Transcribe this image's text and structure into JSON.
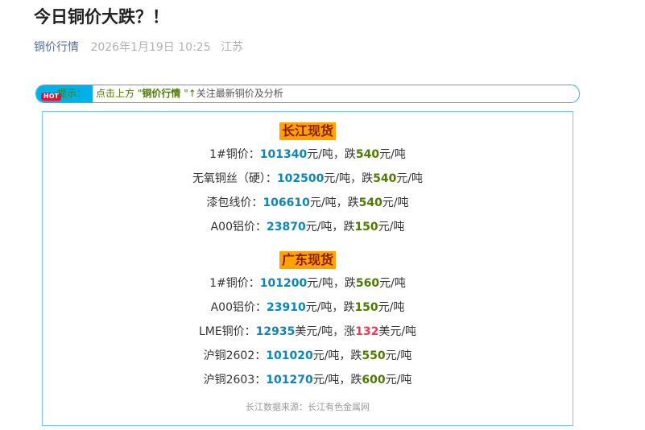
{
  "article": {
    "title": "今日铜价大跌？！",
    "account": "铜价行情",
    "date": "2026年1月19日 10:25",
    "location": "江苏"
  },
  "notice": {
    "badge": "HOT",
    "label": "提示：",
    "prefix": "点击上方 \"",
    "account": "铜价行情",
    "suffix": " \"↑",
    "rest": "关注最新铜价及分析"
  },
  "sections": [
    {
      "title": "长江现货",
      "rows": [
        {
          "label": "1#铜价：",
          "price": "101340",
          "unit": "元/吨，",
          "dir": "跌",
          "delta": "540",
          "delta_unit": "元/吨",
          "trend": "down"
        },
        {
          "label": "无氧铜丝（硬）：",
          "price": "102500",
          "unit": "元/吨，",
          "dir": "跌",
          "delta": "540",
          "delta_unit": "元/吨",
          "trend": "down"
        },
        {
          "label": "漆包线价：",
          "price": "106610",
          "unit": "元/吨，",
          "dir": "跌",
          "delta": "540",
          "delta_unit": "元/吨",
          "trend": "down"
        },
        {
          "label": "A00铝价：",
          "price": "23870",
          "unit": "元/吨，",
          "dir": "跌",
          "delta": "150",
          "delta_unit": "元/吨",
          "trend": "down"
        }
      ]
    },
    {
      "title": "广东现货",
      "rows": [
        {
          "label": "1#铜价：",
          "price": "101200",
          "unit": "元/吨，",
          "dir": "跌",
          "delta": "560",
          "delta_unit": "元/吨",
          "trend": "down"
        },
        {
          "label": "A00铝价：",
          "price": "23910",
          "unit": "元/吨，",
          "dir": "跌",
          "delta": "150",
          "delta_unit": "元/吨",
          "trend": "down"
        },
        {
          "label": "LME铜价：",
          "price": "12935",
          "unit": "美元/吨，",
          "dir": "涨",
          "delta": "132",
          "delta_unit": "美元/吨",
          "trend": "up"
        },
        {
          "label": "沪铜2602：",
          "price": "101020",
          "unit": "元/吨，",
          "dir": "跌",
          "delta": "550",
          "delta_unit": "元/吨",
          "trend": "down"
        },
        {
          "label": "沪铜2603：",
          "price": "101270",
          "unit": "元/吨，",
          "dir": "跌",
          "delta": "600",
          "delta_unit": "元/吨",
          "trend": "down"
        }
      ]
    }
  ],
  "source": "长江数据来源：长江有色金属网",
  "colors": {
    "price": "#0e86b5",
    "down": "#4c7b00",
    "up": "#ff3355",
    "section_bg": "#ffa200"
  }
}
